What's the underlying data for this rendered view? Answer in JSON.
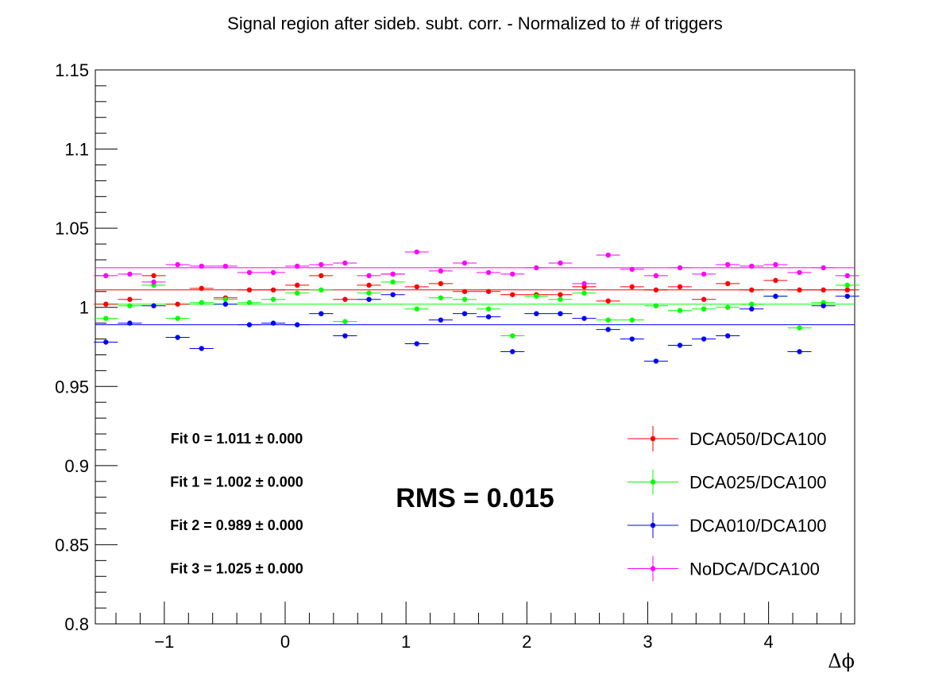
{
  "chart_data": {
    "type": "scatter",
    "title": "Signal region after sideb. subt. corr. - Normalized to # of triggers",
    "xlabel": "Δϕ",
    "ylabel": "",
    "xlim": [
      -1.5708,
      4.7124
    ],
    "ylim": [
      0.8,
      1.15
    ],
    "yticks": [
      "0.8",
      "0.85",
      "0.9",
      "0.95",
      "1",
      "1.05",
      "1.1",
      "1.15"
    ],
    "xticks": [
      "−1",
      "0",
      "1",
      "2",
      "3",
      "4"
    ],
    "grid": false,
    "legend_position": "bottom-right",
    "x": [
      -1.4833,
      -1.2854,
      -1.0875,
      -0.8896,
      -0.6917,
      -0.4938,
      -0.2959,
      -0.098,
      0.0999,
      0.2978,
      0.4957,
      0.6936,
      0.8915,
      1.0894,
      1.2873,
      1.4852,
      1.6831,
      1.881,
      2.0789,
      2.2768,
      2.4747,
      2.6726,
      2.8705,
      3.0684,
      3.2663,
      3.4642,
      3.6621,
      3.86,
      4.0579,
      4.2558,
      4.4537,
      4.6516
    ],
    "series": [
      {
        "name": "DCA050/DCA100",
        "color": "#ff0000",
        "values": [
          1.002,
          1.005,
          1.02,
          1.002,
          1.012,
          1.006,
          1.011,
          1.011,
          1.014,
          1.02,
          1.005,
          1.014,
          1.021,
          1.013,
          1.015,
          1.01,
          1.01,
          1.008,
          1.008,
          1.008,
          1.013,
          1.004,
          1.013,
          1.011,
          1.013,
          1.005,
          1.015,
          1.011,
          1.017,
          1.011,
          1.011,
          1.011
        ],
        "fit": 1.011
      },
      {
        "name": "DCA025/DCA100",
        "color": "#00ff00",
        "values": [
          0.993,
          1.001,
          1.014,
          0.993,
          1.003,
          1.005,
          1.003,
          1.005,
          1.009,
          1.011,
          0.991,
          1.009,
          1.016,
          0.999,
          1.006,
          1.005,
          0.999,
          0.982,
          1.007,
          1.005,
          1.009,
          0.992,
          0.992,
          1.001,
          0.998,
          0.999,
          1.0,
          1.002,
          1.007,
          0.987,
          1.003,
          1.014
        ],
        "fit": 1.002
      },
      {
        "name": "DCA010/DCA100",
        "color": "#0000ff",
        "values": [
          0.978,
          0.99,
          1.001,
          0.981,
          0.974,
          1.002,
          0.989,
          0.99,
          0.989,
          0.996,
          0.982,
          1.005,
          1.008,
          0.977,
          0.992,
          0.996,
          0.994,
          0.972,
          0.996,
          0.996,
          0.993,
          0.986,
          0.98,
          0.966,
          0.976,
          0.98,
          0.982,
          0.999,
          1.007,
          0.972,
          1.001,
          1.007
        ],
        "fit": 0.989
      },
      {
        "name": "NoDCA/DCA100",
        "color": "#ff00ff",
        "values": [
          1.02,
          1.021,
          1.016,
          1.027,
          1.026,
          1.026,
          1.022,
          1.022,
          1.026,
          1.027,
          1.028,
          1.02,
          1.021,
          1.035,
          1.023,
          1.028,
          1.022,
          1.021,
          1.025,
          1.028,
          1.015,
          1.033,
          1.024,
          1.02,
          1.025,
          1.021,
          1.027,
          1.026,
          1.027,
          1.022,
          1.025,
          1.02
        ],
        "fit": 1.025
      }
    ],
    "fit_labels": [
      "Fit 0 = 1.011 ± 0.000",
      "Fit 1 = 1.002 ± 0.000",
      "Fit 2 = 0.989 ± 0.000",
      "Fit 3 = 1.025 ± 0.000"
    ],
    "rms_label": "RMS = 0.015"
  }
}
